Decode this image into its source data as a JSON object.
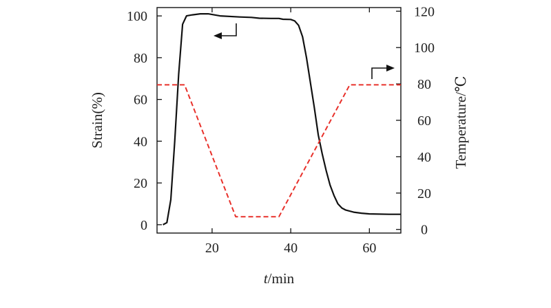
{
  "chart_data": {
    "type": "line",
    "xlabel_italic": "t",
    "xlabel_unit": "/min",
    "ylabel_left": "Strain(%)",
    "ylabel_right": "Temperature/℃",
    "xlim": [
      6,
      68
    ],
    "ylim_left": [
      -4,
      104
    ],
    "ylim_right": [
      -2,
      122
    ],
    "x_ticks": [
      20,
      40,
      60
    ],
    "x_tick_labels": [
      "20",
      "40",
      "60"
    ],
    "y_left_ticks": [
      0,
      20,
      40,
      60,
      80,
      100
    ],
    "y_left_tick_labels": [
      "0",
      "20",
      "40",
      "60",
      "80",
      "100"
    ],
    "y_right_ticks": [
      0,
      20,
      40,
      60,
      80,
      100,
      120
    ],
    "y_right_tick_labels": [
      "0",
      "20",
      "40",
      "60",
      "80",
      "100",
      "120"
    ],
    "grid": false,
    "series": [
      {
        "axis": "left",
        "color": "#111111",
        "style": "solid",
        "points": [
          [
            7.5,
            0
          ],
          [
            8.5,
            1
          ],
          [
            9.5,
            12
          ],
          [
            10.5,
            40
          ],
          [
            11.5,
            72
          ],
          [
            12.5,
            96
          ],
          [
            13.5,
            100
          ],
          [
            15,
            100.5
          ],
          [
            17,
            101
          ],
          [
            19,
            101
          ],
          [
            22,
            100
          ],
          [
            27,
            99.5
          ],
          [
            30,
            99.3
          ],
          [
            32,
            98.9
          ],
          [
            35,
            98.8
          ],
          [
            37,
            98.8
          ],
          [
            38,
            98.4
          ],
          [
            40,
            98.3
          ],
          [
            41,
            97.6
          ],
          [
            42,
            95.5
          ],
          [
            43,
            90
          ],
          [
            44,
            80
          ],
          [
            45,
            68
          ],
          [
            46,
            56
          ],
          [
            47,
            43
          ],
          [
            48,
            34
          ],
          [
            49,
            26
          ],
          [
            50,
            19
          ],
          [
            51,
            14
          ],
          [
            52,
            10
          ],
          [
            53,
            8
          ],
          [
            54,
            7
          ],
          [
            56,
            6
          ],
          [
            58,
            5.5
          ],
          [
            60,
            5.2
          ],
          [
            65,
            5
          ],
          [
            68,
            5
          ]
        ]
      },
      {
        "axis": "right",
        "color": "#e8302a",
        "style": "dashed",
        "points": [
          [
            6,
            79.5
          ],
          [
            13,
            79.5
          ],
          [
            26,
            7
          ],
          [
            37,
            7
          ],
          [
            55,
            79.5
          ],
          [
            68,
            79.5
          ]
        ]
      }
    ],
    "annotations": [
      {
        "type": "arrow",
        "direction": "left",
        "target_axis": "left",
        "color": "#111111"
      },
      {
        "type": "arrow",
        "direction": "right",
        "target_axis": "right",
        "color": "#111111"
      }
    ]
  }
}
